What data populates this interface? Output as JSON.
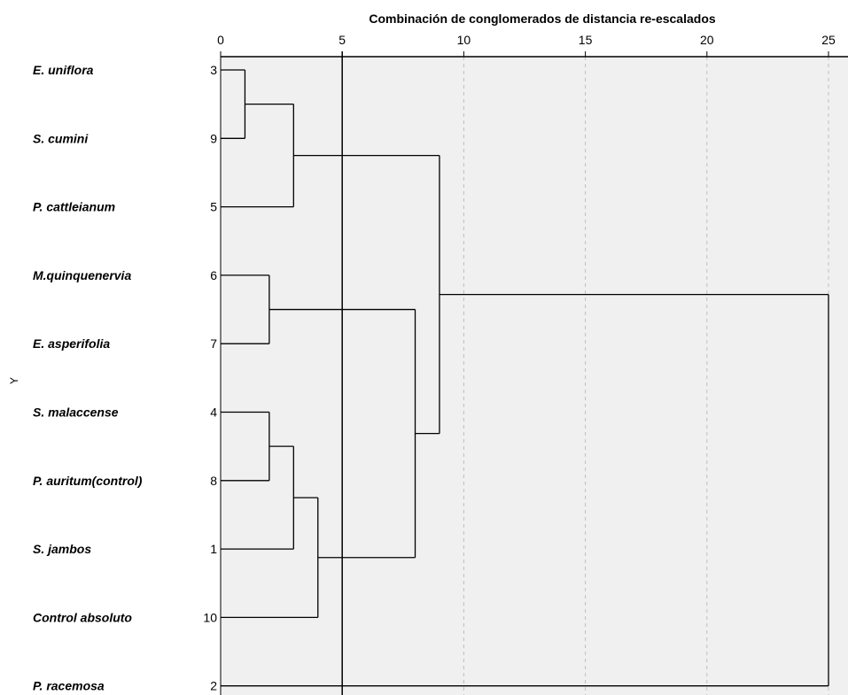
{
  "chart_data": {
    "type": "dendrogram",
    "title": "Combinación de conglomerados de distancia re-escalados",
    "ylabel": "Y",
    "xlim": [
      0,
      25
    ],
    "xticks": [
      0,
      5,
      10,
      15,
      20,
      25
    ],
    "grid_x": true,
    "reference_line_x": 5,
    "leaves": [
      {
        "label": "E. uniflora",
        "id": "3"
      },
      {
        "label": "S. cumini",
        "id": "9"
      },
      {
        "label": "P. cattleianum",
        "id": "5"
      },
      {
        "label": "M.quinquenervia",
        "id": "6"
      },
      {
        "label": "E. asperifolia",
        "id": "7"
      },
      {
        "label": "S. malaccense",
        "id": "4"
      },
      {
        "label": "P. auritum(control)",
        "id": "8"
      },
      {
        "label": "S. jambos",
        "id": "1"
      },
      {
        "label": "Control absoluto",
        "id": "10"
      },
      {
        "label": "P. racemosa",
        "id": "2"
      }
    ],
    "merges": [
      {
        "a": "L0",
        "b": "L1",
        "height": 1
      },
      {
        "a": "L3",
        "b": "L4",
        "height": 2
      },
      {
        "a": "L5",
        "b": "L6",
        "height": 2
      },
      {
        "a": "M0",
        "b": "L2",
        "height": 3
      },
      {
        "a": "M2",
        "b": "L7",
        "height": 3
      },
      {
        "a": "M4",
        "b": "L8",
        "height": 4
      },
      {
        "a": "M1",
        "b": "M5",
        "height": 8
      },
      {
        "a": "M3",
        "b": "M6",
        "height": 9
      },
      {
        "a": "M7",
        "b": "L9",
        "height": 25
      }
    ]
  }
}
